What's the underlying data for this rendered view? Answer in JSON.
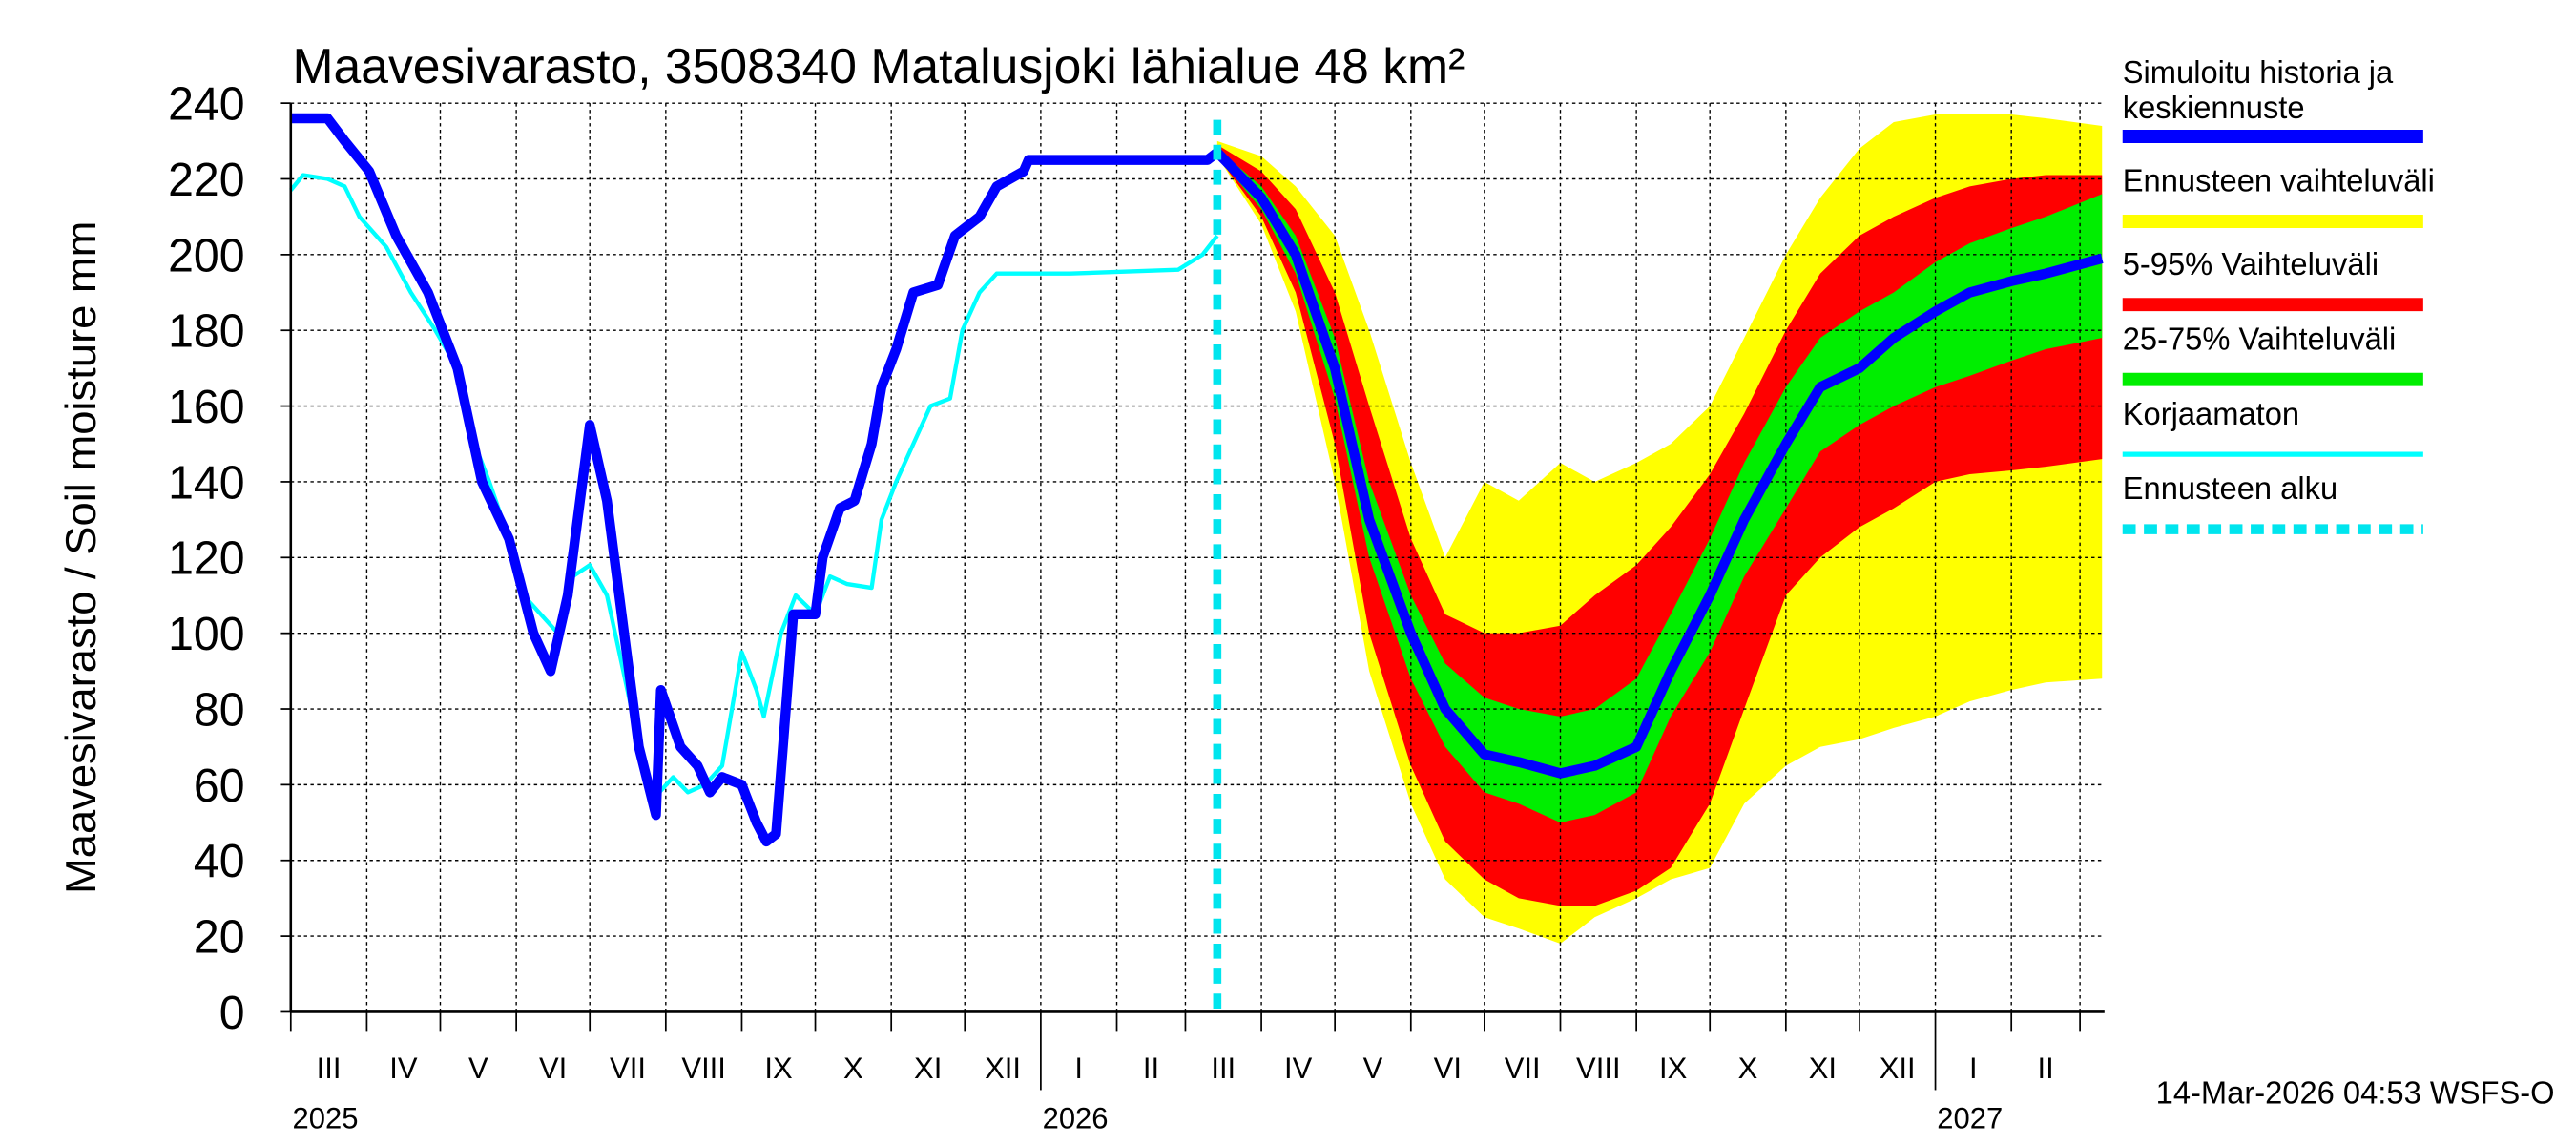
{
  "chart_data": {
    "type": "line",
    "title": "Maavesivarasto, 3508340 Matalusjoki lähialue 48 km²",
    "ylabel": "Maavesivarasto / Soil moisture   mm",
    "ylim": [
      0,
      240
    ],
    "yticks": [
      "0",
      "20",
      "40",
      "60",
      "80",
      "100",
      "120",
      "140",
      "160",
      "180",
      "200",
      "220",
      "240"
    ],
    "xlim": [
      "2025-03-01",
      "2027-03-11"
    ],
    "grid": true,
    "legend_position": "right",
    "months": [
      {
        "label": "III",
        "start": "2025-03-01"
      },
      {
        "label": "IV",
        "start": "2025-04-01"
      },
      {
        "label": "V",
        "start": "2025-05-01"
      },
      {
        "label": "VI",
        "start": "2025-06-01"
      },
      {
        "label": "VII",
        "start": "2025-07-01"
      },
      {
        "label": "VIII",
        "start": "2025-08-01"
      },
      {
        "label": "IX",
        "start": "2025-09-01"
      },
      {
        "label": "X",
        "start": "2025-10-01"
      },
      {
        "label": "XI",
        "start": "2025-11-01"
      },
      {
        "label": "XII",
        "start": "2025-12-01"
      },
      {
        "label": "I",
        "start": "2026-01-01"
      },
      {
        "label": "II",
        "start": "2026-02-01"
      },
      {
        "label": "III",
        "start": "2026-03-01"
      },
      {
        "label": "IV",
        "start": "2026-04-01"
      },
      {
        "label": "V",
        "start": "2026-05-01"
      },
      {
        "label": "VI",
        "start": "2026-06-01"
      },
      {
        "label": "VII",
        "start": "2026-07-01"
      },
      {
        "label": "VIII",
        "start": "2026-08-01"
      },
      {
        "label": "IX",
        "start": "2026-09-01"
      },
      {
        "label": "X",
        "start": "2026-10-01"
      },
      {
        "label": "XI",
        "start": "2026-11-01"
      },
      {
        "label": "XII",
        "start": "2026-12-01"
      },
      {
        "label": "I",
        "start": "2027-01-01"
      },
      {
        "label": "II",
        "start": "2027-02-01"
      },
      {
        "label": "",
        "start": "2027-03-01"
      }
    ],
    "years": [
      {
        "label": "2025",
        "date": "2025-03-01"
      },
      {
        "label": "2026",
        "date": "2026-01-01"
      },
      {
        "label": "2027",
        "date": "2027-01-01"
      }
    ],
    "forecast_start": "2026-03-14",
    "history": {
      "name": "Simuloitu historia ja keskiennuste",
      "color": "#0000ff",
      "dates": [
        "2025-03-01",
        "2025-03-16",
        "2025-03-23",
        "2025-04-02",
        "2025-04-13",
        "2025-04-26",
        "2025-05-08",
        "2025-05-18",
        "2025-05-29",
        "2025-06-08",
        "2025-06-15",
        "2025-06-22",
        "2025-06-26",
        "2025-07-01",
        "2025-07-08",
        "2025-07-15",
        "2025-07-21",
        "2025-07-28",
        "2025-07-30",
        "2025-08-07",
        "2025-08-14",
        "2025-08-19",
        "2025-08-24",
        "2025-09-01",
        "2025-09-07",
        "2025-09-11",
        "2025-09-15",
        "2025-09-19",
        "2025-09-22",
        "2025-10-01",
        "2025-10-04",
        "2025-10-11",
        "2025-10-17",
        "2025-10-24",
        "2025-10-28",
        "2025-11-03",
        "2025-11-10",
        "2025-11-20",
        "2025-11-27",
        "2025-12-07",
        "2025-12-14",
        "2025-12-25",
        "2025-12-27",
        "2026-03-10",
        "2026-03-14"
      ],
      "values": [
        236,
        236,
        230,
        222,
        205,
        190,
        170,
        140,
        125,
        100,
        90,
        110,
        130,
        155,
        135,
        100,
        70,
        52,
        85,
        70,
        65,
        58,
        62,
        60,
        50,
        45,
        47,
        80,
        105,
        105,
        120,
        133,
        135,
        150,
        165,
        175,
        190,
        192,
        205,
        210,
        218,
        222,
        225,
        225,
        227
      ]
    },
    "uncorrected": {
      "name": "Korjaamaton",
      "color": "#00ffff",
      "dates": [
        "2025-03-01",
        "2025-03-06",
        "2025-03-16",
        "2025-03-23",
        "2025-03-29",
        "2025-04-09",
        "2025-04-19",
        "2025-04-29",
        "2025-05-08",
        "2025-05-15",
        "2025-05-21",
        "2025-05-29",
        "2025-06-04",
        "2025-06-11",
        "2025-06-18",
        "2025-06-24",
        "2025-07-01",
        "2025-07-08",
        "2025-07-18",
        "2025-07-24",
        "2025-07-28",
        "2025-08-04",
        "2025-08-10",
        "2025-08-17",
        "2025-08-24",
        "2025-09-01",
        "2025-09-07",
        "2025-09-10",
        "2025-09-17",
        "2025-09-23",
        "2025-10-01",
        "2025-10-07",
        "2025-10-14",
        "2025-10-24",
        "2025-10-28",
        "2025-11-03",
        "2025-11-10",
        "2025-11-17",
        "2025-11-25",
        "2025-11-30",
        "2025-12-07",
        "2025-12-14",
        "2026-01-13",
        "2026-02-26",
        "2026-03-08",
        "2026-03-14"
      ],
      "values": [
        217,
        221,
        220,
        218,
        210,
        202,
        190,
        180,
        170,
        150,
        140,
        125,
        110,
        105,
        100,
        115,
        118,
        110,
        80,
        60,
        57,
        62,
        58,
        60,
        65,
        95,
        85,
        78,
        100,
        110,
        105,
        115,
        113,
        112,
        130,
        140,
        150,
        160,
        162,
        180,
        190,
        195,
        195,
        196,
        200,
        205
      ]
    },
    "forecast": {
      "dates": [
        "2026-03-14",
        "2026-04-01",
        "2026-04-15",
        "2026-05-01",
        "2026-05-15",
        "2026-06-01",
        "2026-06-15",
        "2026-07-01",
        "2026-07-15",
        "2026-08-01",
        "2026-08-15",
        "2026-09-01",
        "2026-09-15",
        "2026-10-01",
        "2026-10-15",
        "2026-11-01",
        "2026-11-15",
        "2026-12-01",
        "2026-12-15",
        "2027-01-01",
        "2027-01-15",
        "2027-02-01",
        "2027-02-15",
        "2027-03-10"
      ],
      "median": [
        227,
        215,
        200,
        170,
        130,
        100,
        80,
        68,
        66,
        63,
        65,
        70,
        90,
        110,
        130,
        150,
        165,
        170,
        178,
        185,
        190,
        193,
        195,
        199
      ],
      "p25": [
        226,
        212,
        195,
        162,
        120,
        88,
        70,
        58,
        55,
        50,
        52,
        58,
        78,
        95,
        115,
        133,
        148,
        155,
        160,
        165,
        168,
        172,
        175,
        178
      ],
      "p75": [
        228,
        218,
        205,
        178,
        140,
        110,
        92,
        83,
        80,
        78,
        80,
        88,
        105,
        125,
        145,
        165,
        178,
        185,
        190,
        198,
        203,
        207,
        210,
        216
      ],
      "p5": [
        226,
        210,
        190,
        150,
        100,
        65,
        45,
        35,
        30,
        28,
        28,
        32,
        38,
        55,
        80,
        110,
        120,
        128,
        133,
        140,
        142,
        143,
        144,
        146
      ],
      "p95": [
        229,
        222,
        212,
        190,
        160,
        125,
        105,
        100,
        100,
        102,
        110,
        118,
        128,
        142,
        158,
        180,
        195,
        205,
        210,
        215,
        218,
        220,
        221,
        221
      ],
      "min": [
        226,
        208,
        185,
        140,
        90,
        55,
        35,
        25,
        22,
        18,
        25,
        30,
        35,
        38,
        55,
        65,
        70,
        72,
        75,
        78,
        82,
        85,
        87,
        88
      ],
      "max": [
        230,
        226,
        218,
        205,
        180,
        145,
        120,
        140,
        135,
        145,
        140,
        145,
        150,
        160,
        178,
        200,
        215,
        228,
        235,
        237,
        237,
        237,
        236,
        234
      ]
    },
    "legend": [
      {
        "label": "Simuloitu historia ja keskiennuste",
        "color": "#0000ff",
        "style": "thick"
      },
      {
        "label": "Ennusteen vaihteluväli",
        "color": "#ffff00",
        "style": "thick"
      },
      {
        "label": "5-95% Vaihteluväli",
        "color": "#ff0000",
        "style": "thick"
      },
      {
        "label": "25-75% Vaihteluväli",
        "color": "#00ee00",
        "style": "thick"
      },
      {
        "label": "Korjaamaton",
        "color": "#00ffff",
        "style": "thin"
      },
      {
        "label": "Ennusteen alku",
        "color": "#00e5ee",
        "style": "dashed"
      }
    ]
  },
  "footer": {
    "timestamp": "14-Mar-2026 04:53 WSFS-O"
  }
}
